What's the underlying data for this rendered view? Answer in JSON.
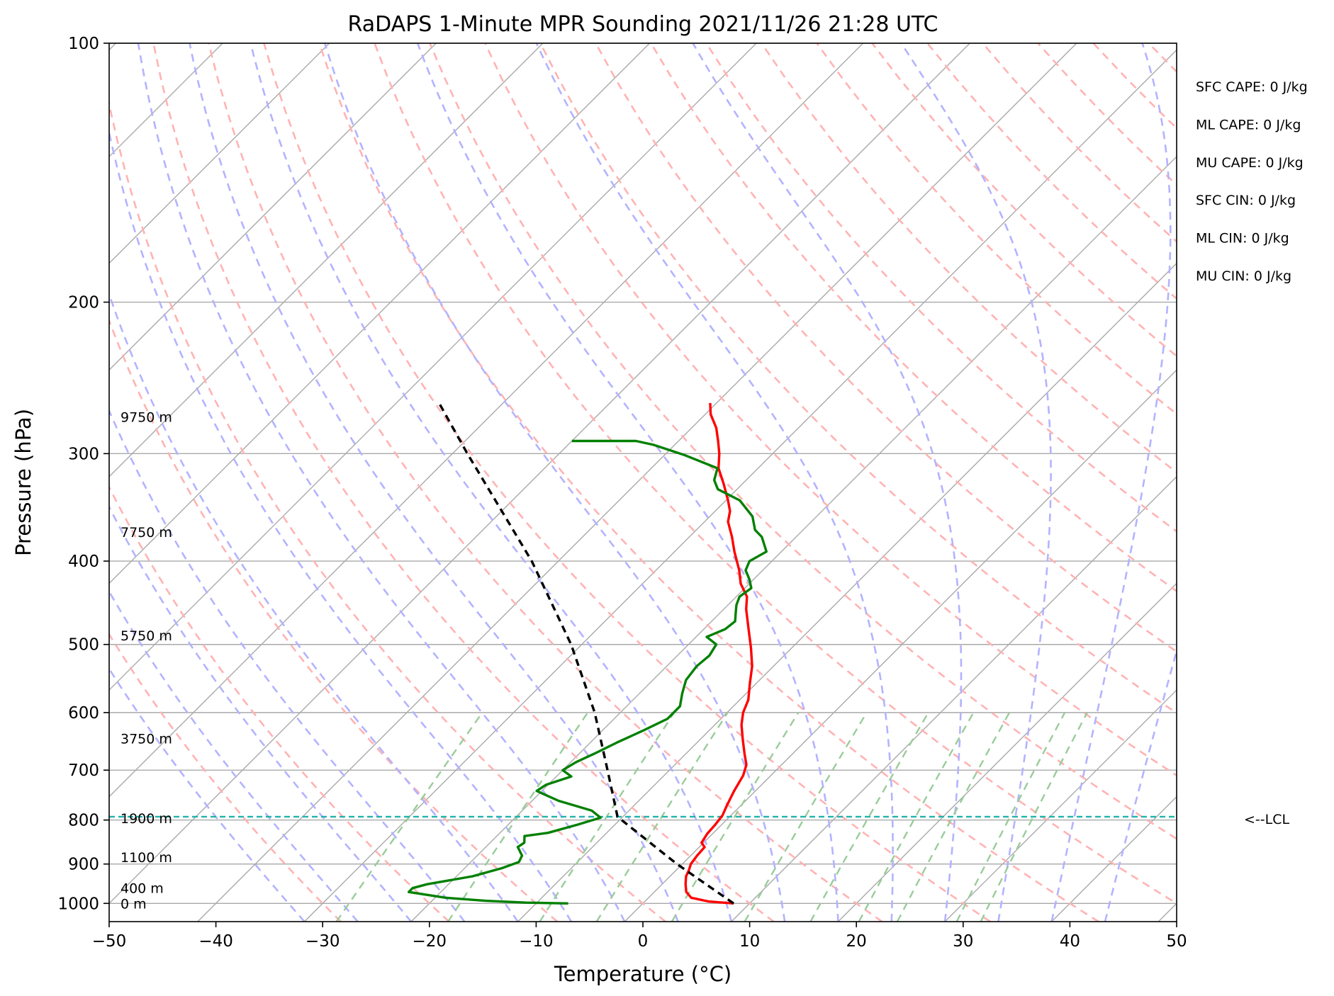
{
  "chart_data": {
    "type": "line",
    "title": "RaDAPS 1-Minute MPR Sounding 2021/11/26 21:28 UTC",
    "xlabel": "Temperature (°C)",
    "ylabel": "Pressure (hPa)",
    "xlim": [
      -50,
      50
    ],
    "ylim": [
      1050,
      100
    ],
    "y_scale": "log",
    "skew": "skew-T log-p",
    "grid": true,
    "x_ticks": [
      "−50",
      "−40",
      "−30",
      "−20",
      "−10",
      "0",
      "10",
      "20",
      "30",
      "40",
      "50"
    ],
    "x_tick_values": [
      -50,
      -40,
      -30,
      -20,
      -10,
      0,
      10,
      20,
      30,
      40,
      50
    ],
    "y_ticks": [
      "100",
      "200",
      "300",
      "400",
      "500",
      "600",
      "700",
      "800",
      "900",
      "1000"
    ],
    "y_tick_values": [
      100,
      200,
      300,
      400,
      500,
      600,
      700,
      800,
      900,
      1000
    ],
    "series": [
      {
        "color": "#ff0000",
        "points": [
          {
            "p": 1000,
            "t": 8.5
          },
          {
            "p": 995,
            "t": 6.0
          },
          {
            "p": 985,
            "t": 4.0
          },
          {
            "p": 970,
            "t": 3.0
          },
          {
            "p": 950,
            "t": 2.2
          },
          {
            "p": 930,
            "t": 1.5
          },
          {
            "p": 915,
            "t": 1.2
          },
          {
            "p": 900,
            "t": 0.8
          },
          {
            "p": 880,
            "t": 0.6
          },
          {
            "p": 860,
            "t": 0.5
          },
          {
            "p": 850,
            "t": -0.2
          },
          {
            "p": 830,
            "t": -0.5
          },
          {
            "p": 810,
            "t": -0.6
          },
          {
            "p": 790,
            "t": -0.8
          },
          {
            "p": 770,
            "t": -1.3
          },
          {
            "p": 740,
            "t": -2.0
          },
          {
            "p": 710,
            "t": -2.6
          },
          {
            "p": 690,
            "t": -3.3
          },
          {
            "p": 670,
            "t": -4.5
          },
          {
            "p": 645,
            "t": -6.0
          },
          {
            "p": 620,
            "t": -7.5
          },
          {
            "p": 600,
            "t": -8.5
          },
          {
            "p": 580,
            "t": -9.2
          },
          {
            "p": 555,
            "t": -10.6
          },
          {
            "p": 530,
            "t": -12.0
          },
          {
            "p": 505,
            "t": -13.8
          },
          {
            "p": 480,
            "t": -15.8
          },
          {
            "p": 455,
            "t": -17.9
          },
          {
            "p": 440,
            "t": -19.0
          },
          {
            "p": 425,
            "t": -20.8
          },
          {
            "p": 410,
            "t": -22.2
          },
          {
            "p": 390,
            "t": -24.4
          },
          {
            "p": 375,
            "t": -26.0
          },
          {
            "p": 360,
            "t": -27.8
          },
          {
            "p": 350,
            "t": -28.6
          },
          {
            "p": 340,
            "t": -29.8
          },
          {
            "p": 325,
            "t": -31.8
          },
          {
            "p": 312,
            "t": -33.7
          },
          {
            "p": 300,
            "t": -35.0
          },
          {
            "p": 290,
            "t": -36.3
          },
          {
            "p": 280,
            "t": -37.7
          },
          {
            "p": 270,
            "t": -39.5
          },
          {
            "p": 262,
            "t": -40.6
          }
        ]
      },
      {
        "color": "#008000",
        "points": [
          {
            "p": 1000,
            "t": -7.0
          },
          {
            "p": 998,
            "t": -11.0
          },
          {
            "p": 993,
            "t": -15.0
          },
          {
            "p": 985,
            "t": -19.0
          },
          {
            "p": 970,
            "t": -23.0
          },
          {
            "p": 960,
            "t": -23.0
          },
          {
            "p": 950,
            "t": -22.0
          },
          {
            "p": 930,
            "t": -18.5
          },
          {
            "p": 910,
            "t": -16.5
          },
          {
            "p": 895,
            "t": -15.5
          },
          {
            "p": 880,
            "t": -15.8
          },
          {
            "p": 860,
            "t": -17.0
          },
          {
            "p": 850,
            "t": -16.8
          },
          {
            "p": 835,
            "t": -17.4
          },
          {
            "p": 828,
            "t": -15.5
          },
          {
            "p": 810,
            "t": -13.5
          },
          {
            "p": 795,
            "t": -12.0
          },
          {
            "p": 780,
            "t": -13.5
          },
          {
            "p": 760,
            "t": -17.5
          },
          {
            "p": 740,
            "t": -20.5
          },
          {
            "p": 728,
            "t": -20.2
          },
          {
            "p": 712,
            "t": -18.6
          },
          {
            "p": 700,
            "t": -20.0
          },
          {
            "p": 685,
            "t": -19.5
          },
          {
            "p": 670,
            "t": -18.6
          },
          {
            "p": 650,
            "t": -17.5
          },
          {
            "p": 630,
            "t": -16.2
          },
          {
            "p": 610,
            "t": -15.0
          },
          {
            "p": 590,
            "t": -15.0
          },
          {
            "p": 570,
            "t": -16.0
          },
          {
            "p": 550,
            "t": -16.9
          },
          {
            "p": 530,
            "t": -17.2
          },
          {
            "p": 515,
            "t": -17.0
          },
          {
            "p": 500,
            "t": -17.4
          },
          {
            "p": 490,
            "t": -19.0
          },
          {
            "p": 480,
            "t": -18.0
          },
          {
            "p": 470,
            "t": -17.8
          },
          {
            "p": 460,
            "t": -18.5
          },
          {
            "p": 450,
            "t": -19.2
          },
          {
            "p": 440,
            "t": -19.7
          },
          {
            "p": 430,
            "t": -19.4
          },
          {
            "p": 420,
            "t": -20.4
          },
          {
            "p": 410,
            "t": -21.6
          },
          {
            "p": 400,
            "t": -22.1
          },
          {
            "p": 390,
            "t": -21.4
          },
          {
            "p": 375,
            "t": -23.2
          },
          {
            "p": 368,
            "t": -24.5
          },
          {
            "p": 355,
            "t": -26.0
          },
          {
            "p": 340,
            "t": -28.7
          },
          {
            "p": 330,
            "t": -31.8
          },
          {
            "p": 322,
            "t": -33.0
          },
          {
            "p": 312,
            "t": -33.8
          },
          {
            "p": 301,
            "t": -38.2
          },
          {
            "p": 293,
            "t": -42.0
          },
          {
            "p": 290,
            "t": -44.0
          },
          {
            "p": 290,
            "t": -50.0
          }
        ]
      },
      {
        "color": "#000000",
        "dashed": true,
        "points": [
          {
            "p": 1000,
            "t": 8.5
          },
          {
            "p": 900,
            "t": -0.5
          },
          {
            "p": 793,
            "t": -10.5
          },
          {
            "p": 700,
            "t": -15.8
          },
          {
            "p": 600,
            "t": -22.4
          },
          {
            "p": 500,
            "t": -31.0
          },
          {
            "p": 400,
            "t": -42.5
          },
          {
            "p": 300,
            "t": -58.6
          },
          {
            "p": 262,
            "t": -66.0
          }
        ]
      }
    ],
    "annotations": {
      "lcl": {
        "pressure": 793,
        "label": "<--LCL",
        "color": "#20b2aa"
      },
      "heights": [
        {
          "label": "9750 m",
          "p": 272
        },
        {
          "label": "7750 m",
          "p": 370
        },
        {
          "label": "5750 m",
          "p": 488
        },
        {
          "label": "3750 m",
          "p": 643
        },
        {
          "label": "1900 m",
          "p": 796
        },
        {
          "label": "1100 m",
          "p": 884
        },
        {
          "label": "400 m",
          "p": 960
        },
        {
          "label": "0 m",
          "p": 1000
        }
      ],
      "indices": [
        "SFC CAPE: 0 J/kg",
        "ML CAPE: 0 J/kg",
        "MU CAPE: 0 J/kg",
        "SFC CIN: 0 J/kg",
        "ML CIN: 0 J/kg",
        "MU CIN: 0 J/kg"
      ]
    },
    "colors": {
      "isotherm": "#a9a9a9",
      "dry_adiabat": "#ffb3b3",
      "moist_adiabat": "#b3b3ff",
      "mixing_ratio": "#99cc99"
    }
  }
}
